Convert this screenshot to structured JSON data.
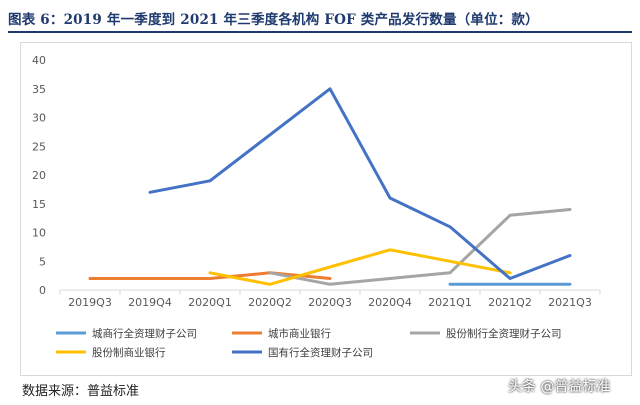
{
  "header": {
    "title": "图表 6：2019 年一季度到 2021 年三季度各机构 FOF 类产品发行数量（单位：款）"
  },
  "footer": {
    "source": "数据来源：普益标准",
    "watermark": "头条 @普益标准"
  },
  "chart_data": {
    "type": "line",
    "categories": [
      "2019Q3",
      "2019Q4",
      "2020Q1",
      "2020Q2",
      "2020Q3",
      "2020Q4",
      "2021Q1",
      "2021Q2",
      "2021Q3"
    ],
    "ylim": [
      0,
      40
    ],
    "yticks": [
      0,
      5,
      10,
      15,
      20,
      25,
      30,
      35,
      40
    ],
    "grid": false,
    "legend_position": "bottom",
    "series": [
      {
        "name": "城商行全资理财子公司",
        "color": "#5b9bd5",
        "values": [
          null,
          null,
          null,
          null,
          null,
          null,
          1,
          1,
          1
        ]
      },
      {
        "name": "城市商业银行",
        "color": "#ed7d31",
        "values": [
          2,
          2,
          2,
          3,
          2,
          null,
          null,
          null,
          null
        ]
      },
      {
        "name": "股份制行全资理财子公司",
        "color": "#a5a5a5",
        "values": [
          null,
          null,
          null,
          3,
          1,
          2,
          3,
          13,
          14
        ]
      },
      {
        "name": "股份制商业银行",
        "color": "#ffc000",
        "values": [
          null,
          null,
          3,
          1,
          4,
          7,
          5,
          3,
          null
        ]
      },
      {
        "name": "国有行全资理财子公司",
        "color": "#4472c4",
        "values": [
          null,
          17,
          19,
          27,
          35,
          16,
          11,
          2,
          6
        ]
      }
    ]
  }
}
